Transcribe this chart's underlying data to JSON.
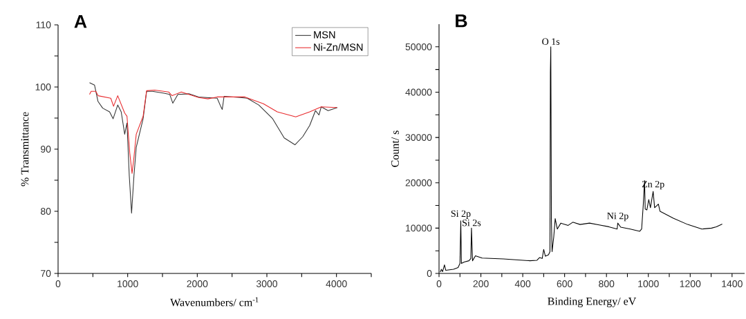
{
  "chart_data": [
    {
      "type": "line",
      "title": "A",
      "xlabel": "Wavenumbers/ cm$^{-1}$",
      "ylabel": "% Transmittance",
      "xlim": [
        0,
        4500
      ],
      "ylim": [
        70,
        110
      ],
      "xticks": [
        0,
        {
          "value": 500,
          "label": null
        },
        1000,
        {
          "value": 1500,
          "label": null
        },
        2000,
        {
          "value": 2500,
          "label": null
        },
        3000,
        {
          "value": 3500,
          "label": null
        },
        4000,
        {
          "value": 4500,
          "label": null
        }
      ],
      "yticks": [
        70,
        {
          "value": 75,
          "label": null
        },
        80,
        {
          "value": 85,
          "label": null
        },
        90,
        {
          "value": 95,
          "label": null
        },
        100,
        {
          "value": 105,
          "label": null
        },
        110
      ],
      "legend": "top right",
      "marker": "none",
      "line_style": "solid",
      "series": [
        {
          "name": "MSN",
          "color": "#333333",
          "x": [
            452,
            524,
            573,
            641,
            740,
            791,
            857,
            907,
            957,
            990,
            1023,
            1056,
            1090,
            1123,
            1222,
            1272,
            1355,
            1522,
            1605,
            1648,
            1721,
            1887,
            2020,
            2286,
            2336,
            2359,
            2385,
            2618,
            2718,
            2884,
            3083,
            3249,
            3405,
            3515,
            3615,
            3698,
            3748,
            3781,
            3880,
            4013
          ],
          "values": [
            100.7,
            100.3,
            97.7,
            96.6,
            96.0,
            94.9,
            97.1,
            96.0,
            92.4,
            94.2,
            85.7,
            79.7,
            85.7,
            90.3,
            94.9,
            99.3,
            99.3,
            99.0,
            98.8,
            97.4,
            98.8,
            98.9,
            98.4,
            98.2,
            96.9,
            96.4,
            98.5,
            98.3,
            98.2,
            97.1,
            94.9,
            91.8,
            90.7,
            92.0,
            93.8,
            96.2,
            95.5,
            96.8,
            96.2,
            96.7
          ]
        },
        {
          "name": "Ni-Zn/MSN",
          "color": "#e8282b",
          "x": [
            452,
            475,
            542,
            575,
            757,
            797,
            857,
            957,
            990,
            1030,
            1063,
            1090,
            1123,
            1222,
            1272,
            1389,
            1588,
            1638,
            1771,
            2020,
            2153,
            2286,
            2618,
            2684,
            2950,
            3150,
            3415,
            3615,
            3781,
            4007
          ],
          "values": [
            98.8,
            99.3,
            99.3,
            98.6,
            98.2,
            96.9,
            98.6,
            95.8,
            95.3,
            89.4,
            86.1,
            88.7,
            92.4,
            95.3,
            99.4,
            99.5,
            99.2,
            98.6,
            99.2,
            98.3,
            98.1,
            98.4,
            98.4,
            98.4,
            97.3,
            96.0,
            95.2,
            96.0,
            96.8,
            96.7
          ]
        }
      ]
    },
    {
      "type": "line",
      "title": "B",
      "xlabel": "Binding Energy/ eV",
      "ylabel": "Count/ s",
      "xlim": [
        0,
        1460
      ],
      "ylim": [
        0,
        55000
      ],
      "xticks": [
        0,
        {
          "value": 100,
          "label": null
        },
        200,
        {
          "value": 300,
          "label": null
        },
        400,
        {
          "value": 500,
          "label": null
        },
        600,
        {
          "value": 700,
          "label": null
        },
        800,
        {
          "value": 900,
          "label": null
        },
        1000,
        {
          "value": 1100,
          "label": null
        },
        1200,
        {
          "value": 1300,
          "label": null
        },
        1400
      ],
      "yticks": [
        0,
        {
          "value": 5000,
          "label": null
        },
        10000,
        {
          "value": 15000,
          "label": null
        },
        20000,
        {
          "value": 25000,
          "label": null
        },
        30000,
        {
          "value": 35000,
          "label": null
        },
        40000,
        {
          "value": 45000,
          "label": null
        },
        50000
      ],
      "marker": "none",
      "line_style": "solid",
      "annotations": [
        {
          "text": "Si 2p",
          "x": 104,
          "y": 11600
        },
        {
          "text": "Si 2s",
          "x": 155,
          "y": 10000
        },
        {
          "text": "O 1s",
          "x": 534,
          "y": 50000
        },
        {
          "text": "Ni 2p",
          "x": 854,
          "y": 11100
        },
        {
          "text": "Zn 2p",
          "x": 1023,
          "y": 18100
        }
      ],
      "series": [
        {
          "color": "#000000",
          "x": [
            6,
            11,
            17,
            26,
            32,
            69,
            91,
            100,
            104,
            107,
            120,
            143,
            152,
            155,
            160,
            174,
            206,
            308,
            434,
            468,
            480,
            493,
            500,
            508,
            523,
            530,
            532,
            534,
            537,
            540,
            548,
            555,
            565,
            582,
            617,
            639,
            674,
            719,
            765,
            811,
            851,
            854,
            868,
            914,
            959,
            968,
            976,
            982,
            985,
            993,
            1002,
            1010,
            1023,
            1030,
            1048,
            1056,
            1119,
            1188,
            1256,
            1302,
            1325,
            1353
          ],
          "values": [
            300,
            900,
            400,
            1900,
            700,
            900,
            1300,
            2200,
            11600,
            2200,
            2500,
            2800,
            3300,
            10000,
            2800,
            3900,
            3400,
            3200,
            2800,
            2900,
            3500,
            3300,
            5300,
            3800,
            4100,
            4800,
            44400,
            50000,
            11600,
            4800,
            8000,
            12100,
            9800,
            11100,
            10600,
            11300,
            10800,
            11100,
            10700,
            10300,
            9800,
            11100,
            10200,
            9800,
            9300,
            9800,
            15300,
            20500,
            14200,
            14000,
            16300,
            14500,
            18100,
            14500,
            15300,
            13700,
            12200,
            10800,
            9800,
            10000,
            10300,
            10900
          ]
        }
      ]
    }
  ]
}
